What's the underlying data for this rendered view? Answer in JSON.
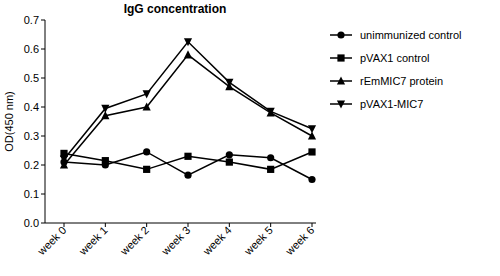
{
  "chart_data": {
    "type": "line",
    "title": "IgG concentration",
    "y_label": "OD(450 nm)",
    "categories": [
      "week 0",
      "week 1",
      "week 2",
      "week 3",
      "week 4",
      "week 5",
      "week 6"
    ],
    "ylim": [
      0,
      0.7
    ],
    "yticks": [
      {
        "value": 0,
        "label": "0.0"
      },
      {
        "value": 0.1,
        "label": "0.1"
      },
      {
        "value": 0.2,
        "label": "0.2"
      },
      {
        "value": 0.3,
        "label": "0.3"
      },
      {
        "value": 0.4,
        "label": "0.4"
      },
      {
        "value": 0.5,
        "label": "0.5"
      },
      {
        "value": 0.6,
        "label": "0.6"
      },
      {
        "value": 0.7,
        "label": "0.7"
      }
    ],
    "grid": false,
    "legend": "right",
    "series": [
      {
        "name": "unimmunized control",
        "color": "#000000",
        "marker": "circle",
        "values": [
          0.21,
          0.2,
          0.245,
          0.165,
          0.235,
          0.225,
          0.15
        ]
      },
      {
        "name": "pVAX1 control",
        "color": "#000000",
        "marker": "square",
        "values": [
          0.24,
          0.215,
          0.185,
          0.23,
          0.21,
          0.185,
          0.245
        ]
      },
      {
        "name": "rEmMIC7 protein",
        "color": "#000000",
        "marker": "triangle",
        "values": [
          0.2,
          0.37,
          0.4,
          0.58,
          0.47,
          0.38,
          0.3
        ]
      },
      {
        "name": "pVAX1-MIC7",
        "color": "#000000",
        "marker": "triangle-down",
        "values": [
          0.22,
          0.395,
          0.445,
          0.625,
          0.485,
          0.385,
          0.325
        ]
      }
    ]
  }
}
